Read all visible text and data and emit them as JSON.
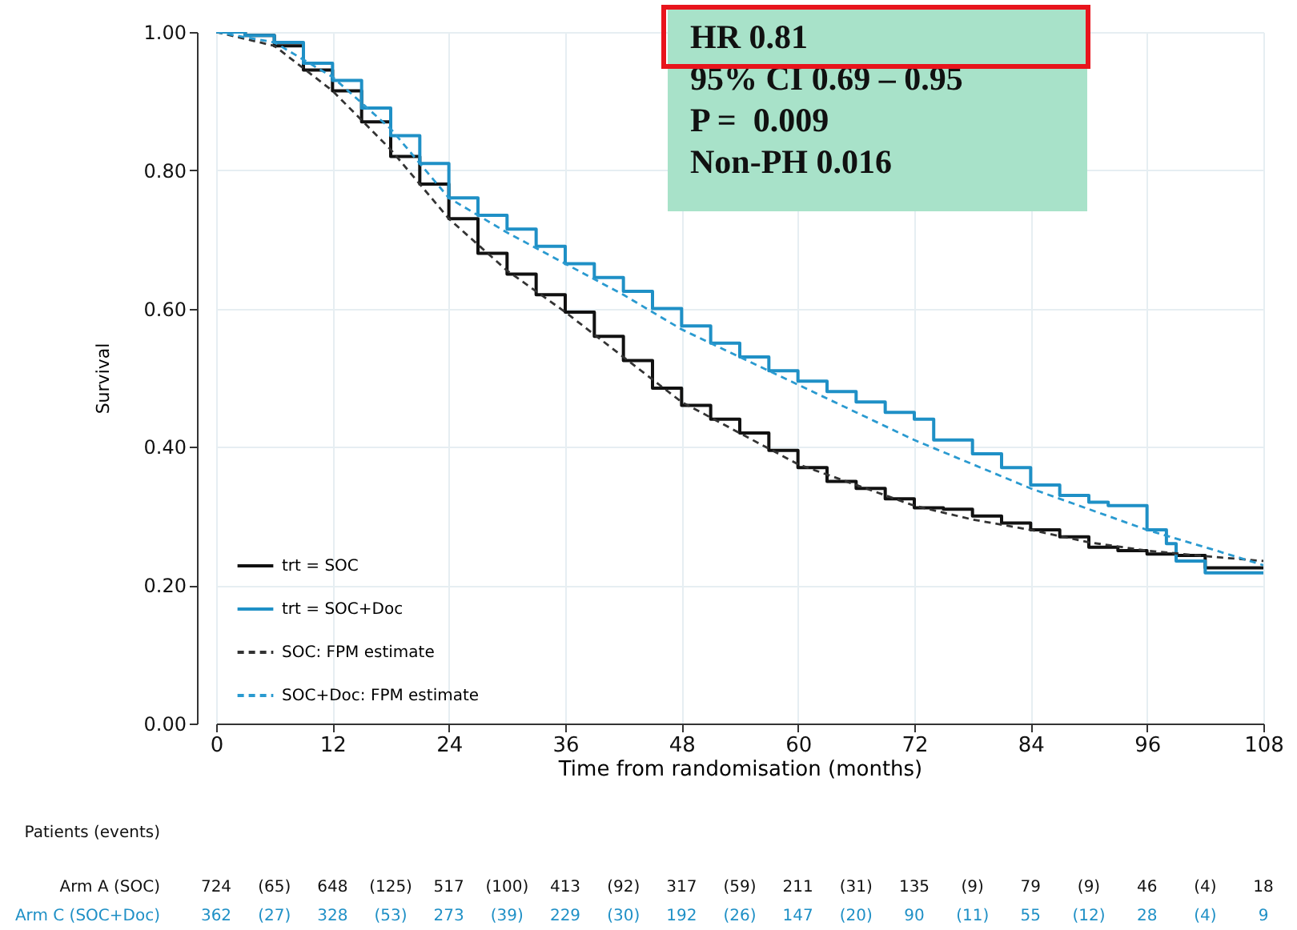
{
  "chart_data": {
    "type": "step",
    "xlabel": "Time from randomisation (months)",
    "ylabel": "Survival",
    "xlim": [
      0,
      108
    ],
    "xticks": [
      0,
      12,
      24,
      36,
      48,
      60,
      72,
      84,
      96,
      108
    ],
    "ylim": [
      0,
      1
    ],
    "yticks": [
      {
        "value": 0,
        "label": "0.00"
      },
      {
        "value": 0.2,
        "label": "0.20"
      },
      {
        "value": 0.4,
        "label": "0.40"
      },
      {
        "value": 0.6,
        "label": "0.60"
      },
      {
        "value": 0.8,
        "label": "0.80"
      },
      {
        "value": 1,
        "label": "1.00"
      }
    ],
    "grid": true,
    "legend": "bottom left",
    "series": [
      {
        "name": "trt = SOC",
        "color": "#111111",
        "line_style": "solid",
        "x": [
          0,
          3,
          6,
          9,
          12,
          15,
          18,
          21,
          24,
          27,
          30,
          33,
          36,
          39,
          42,
          45,
          48,
          51,
          54,
          57,
          60,
          63,
          66,
          69,
          72,
          75,
          78,
          81,
          84,
          87,
          90,
          93,
          96,
          99,
          102,
          108
        ],
        "values": [
          1,
          0.995,
          0.98,
          0.945,
          0.915,
          0.87,
          0.82,
          0.78,
          0.73,
          0.68,
          0.65,
          0.62,
          0.595,
          0.56,
          0.525,
          0.485,
          0.46,
          0.44,
          0.42,
          0.395,
          0.37,
          0.35,
          0.34,
          0.325,
          0.312,
          0.31,
          0.3,
          0.29,
          0.28,
          0.27,
          0.255,
          0.25,
          0.245,
          0.243,
          0.225,
          0.225
        ]
      },
      {
        "name": "trt = SOC+Doc",
        "color": "#1f90c6",
        "line_style": "solid",
        "x": [
          0,
          3,
          6,
          9,
          12,
          15,
          18,
          21,
          24,
          27,
          30,
          33,
          36,
          39,
          42,
          45,
          48,
          51,
          54,
          57,
          60,
          63,
          66,
          69,
          72,
          74,
          78,
          81,
          84,
          87,
          90,
          92,
          96,
          98,
          99,
          102,
          108
        ],
        "values": [
          1,
          0.995,
          0.985,
          0.955,
          0.93,
          0.89,
          0.85,
          0.81,
          0.76,
          0.735,
          0.715,
          0.69,
          0.665,
          0.645,
          0.625,
          0.6,
          0.575,
          0.55,
          0.53,
          0.51,
          0.495,
          0.48,
          0.465,
          0.45,
          0.44,
          0.41,
          0.39,
          0.37,
          0.345,
          0.33,
          0.32,
          0.315,
          0.28,
          0.26,
          0.235,
          0.218,
          0.218
        ]
      },
      {
        "name": "SOC: FPM estimate",
        "color": "#333333",
        "type": "line",
        "line_style": "dashed",
        "x": [
          0,
          6,
          12,
          18,
          24,
          30,
          36,
          42,
          48,
          54,
          60,
          66,
          72,
          78,
          84,
          90,
          96,
          102,
          108
        ],
        "values": [
          1,
          0.98,
          0.915,
          0.83,
          0.73,
          0.655,
          0.595,
          0.53,
          0.465,
          0.42,
          0.375,
          0.345,
          0.315,
          0.295,
          0.28,
          0.262,
          0.25,
          0.242,
          0.235
        ]
      },
      {
        "name": "SOC+Doc: FPM estimate",
        "color": "#2a9ad0",
        "type": "line",
        "line_style": "dashed",
        "x": [
          0,
          6,
          12,
          18,
          24,
          30,
          36,
          42,
          48,
          54,
          60,
          66,
          72,
          78,
          84,
          90,
          96,
          102,
          108
        ],
        "values": [
          1,
          0.985,
          0.935,
          0.86,
          0.76,
          0.71,
          0.665,
          0.62,
          0.57,
          0.53,
          0.49,
          0.45,
          0.41,
          0.375,
          0.34,
          0.31,
          0.28,
          0.255,
          0.229
        ]
      }
    ],
    "annotations": [
      "HR 0.81",
      "95% CI 0.69 – 0.95",
      "P =  0.009",
      "Non-PH 0.016",
      "Patients (events)",
      "Arm A (SOC)",
      "724",
      "(65)",
      "648",
      "(125)",
      "517",
      "(100)",
      "413",
      "(92)",
      "317",
      "(59)",
      "211",
      "(31)",
      "135",
      "(9)",
      "79",
      "(9)",
      "46",
      "(4)",
      "18",
      "Arm C (SOC+Doc)",
      "362",
      "(27)",
      "328",
      "(53)",
      "273",
      "(39)",
      "229",
      "(30)",
      "192",
      "(26)",
      "147",
      "(20)",
      "90",
      "(11)",
      "55",
      "(12)",
      "28",
      "(4)",
      "9"
    ]
  }
}
